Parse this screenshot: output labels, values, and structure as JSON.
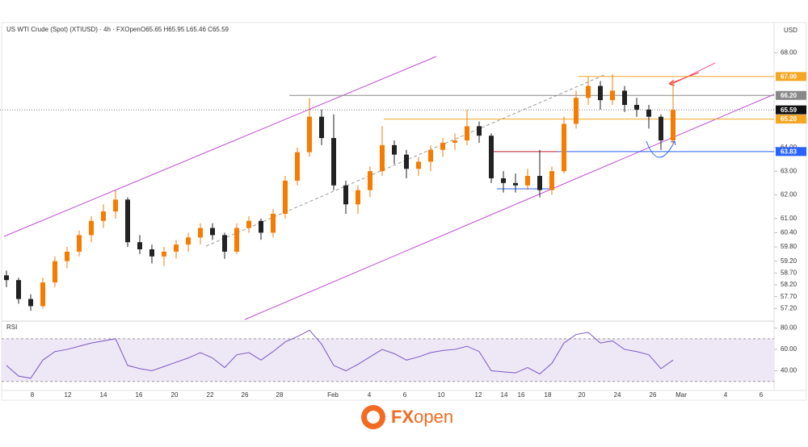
{
  "chart_data": {
    "type": "candlestick",
    "title": "US WTI Crude (Spot) (XTIUSD) · 4h · FXOpen",
    "ohlc_text": "O65.65 H65.95 L65.46 C65.59",
    "y_axis_label": "USD",
    "up_color": "#f57c00",
    "down_color": "#222222",
    "ylim": [
      56.7,
      68.8
    ],
    "yticks": [
      {
        "value": 68,
        "label": "68.00"
      },
      {
        "value": 64,
        "label": "64.00"
      },
      {
        "value": 63,
        "label": "63.00"
      },
      {
        "value": 62,
        "label": "62.00"
      },
      {
        "value": 61,
        "label": "61.00"
      },
      {
        "value": 60.4,
        "label": "60.40"
      },
      {
        "value": 59.8,
        "label": "59.80"
      },
      {
        "value": 59.2,
        "label": "59.20"
      },
      {
        "value": 58.7,
        "label": "58.70"
      },
      {
        "value": 58.2,
        "label": "58.20"
      },
      {
        "value": 57.7,
        "label": "57.70"
      },
      {
        "value": 57.2,
        "label": "57.20"
      }
    ],
    "x_labels": [
      "8",
      "12",
      "14",
      "16",
      "20",
      "22",
      "26",
      "28",
      "Feb",
      "4",
      "6",
      "10",
      "12",
      "14",
      "16",
      "18",
      "20",
      "24",
      "26",
      "Mar",
      "4",
      "6"
    ],
    "candles": [
      [
        58.6,
        58.8,
        58.1,
        58.4
      ],
      [
        58.4,
        58.5,
        57.4,
        57.6
      ],
      [
        57.6,
        57.8,
        57.1,
        57.3
      ],
      [
        57.3,
        58.5,
        57.2,
        58.3
      ],
      [
        58.3,
        59.4,
        58.1,
        59.2
      ],
      [
        59.2,
        59.8,
        58.9,
        59.6
      ],
      [
        59.6,
        60.5,
        59.4,
        60.3
      ],
      [
        60.3,
        61.1,
        60.0,
        60.9
      ],
      [
        60.9,
        61.6,
        60.6,
        61.3
      ],
      [
        61.3,
        62.2,
        61.0,
        61.8
      ],
      [
        61.8,
        61.9,
        59.8,
        60.0
      ],
      [
        60.0,
        60.3,
        59.5,
        59.7
      ],
      [
        59.7,
        59.9,
        59.1,
        59.4
      ],
      [
        59.4,
        59.8,
        59.0,
        59.6
      ],
      [
        59.6,
        60.1,
        59.3,
        59.9
      ],
      [
        59.9,
        60.4,
        59.6,
        60.2
      ],
      [
        60.2,
        60.8,
        59.9,
        60.6
      ],
      [
        60.6,
        60.8,
        60.1,
        60.3
      ],
      [
        60.3,
        60.4,
        59.3,
        59.6
      ],
      [
        59.6,
        60.8,
        59.5,
        60.6
      ],
      [
        60.6,
        61.1,
        60.4,
        60.9
      ],
      [
        60.9,
        61.0,
        60.1,
        60.4
      ],
      [
        60.4,
        61.4,
        60.2,
        61.2
      ],
      [
        61.2,
        62.8,
        61.0,
        62.6
      ],
      [
        62.6,
        64.0,
        62.4,
        63.8
      ],
      [
        63.8,
        66.1,
        63.6,
        65.3
      ],
      [
        65.3,
        65.6,
        64.1,
        64.4
      ],
      [
        64.4,
        65.4,
        62.2,
        62.4
      ],
      [
        62.4,
        62.6,
        61.2,
        61.6
      ],
      [
        61.6,
        62.4,
        61.2,
        62.2
      ],
      [
        62.2,
        63.2,
        61.9,
        63.0
      ],
      [
        63.0,
        64.9,
        62.8,
        64.1
      ],
      [
        64.1,
        64.3,
        63.3,
        63.7
      ],
      [
        63.7,
        63.9,
        62.7,
        63.1
      ],
      [
        63.1,
        63.6,
        62.8,
        63.4
      ],
      [
        63.4,
        64.1,
        63.0,
        63.9
      ],
      [
        63.9,
        64.4,
        63.6,
        64.2
      ],
      [
        64.2,
        64.6,
        63.9,
        64.3
      ],
      [
        64.3,
        65.6,
        64.1,
        64.9
      ],
      [
        64.9,
        65.1,
        64.2,
        64.5
      ],
      [
        64.5,
        64.6,
        62.5,
        62.7
      ],
      [
        62.7,
        63.0,
        62.1,
        62.5
      ],
      [
        62.5,
        62.9,
        62.1,
        62.4
      ],
      [
        62.4,
        63.1,
        62.2,
        62.8
      ],
      [
        62.8,
        63.9,
        61.9,
        62.2
      ],
      [
        62.2,
        63.2,
        62.0,
        63.0
      ],
      [
        63.0,
        65.3,
        62.9,
        65.0
      ],
      [
        65.0,
        66.4,
        64.8,
        66.1
      ],
      [
        66.1,
        67.0,
        65.8,
        66.6
      ],
      [
        66.6,
        66.8,
        65.6,
        66.0
      ],
      [
        66.0,
        67.1,
        65.8,
        66.4
      ],
      [
        66.4,
        66.6,
        65.5,
        65.8
      ],
      [
        65.8,
        66.1,
        65.3,
        65.6
      ],
      [
        65.6,
        65.8,
        64.8,
        65.3
      ],
      [
        65.3,
        65.4,
        63.9,
        64.3
      ],
      [
        64.3,
        66.8,
        64.1,
        65.59
      ]
    ],
    "levels": [
      {
        "value": 67,
        "label": "67.00",
        "color": "#f5a623"
      },
      {
        "value": 66.2,
        "label": "66.20",
        "color": "#888888"
      },
      {
        "value": 65.59,
        "label": "65.59",
        "color": "#111111"
      },
      {
        "value": 65.2,
        "label": "65.20",
        "color": "#f5a623"
      },
      {
        "value": 63.83,
        "label": "63.83",
        "color": "#2962ff"
      }
    ],
    "rsi": {
      "label": "RSI",
      "color": "#7e57c2",
      "ylim": [
        23,
        85
      ],
      "band": [
        30,
        70
      ],
      "yticks": [
        {
          "value": 80,
          "label": "80.00"
        },
        {
          "value": 60,
          "label": "60.00"
        },
        {
          "value": 40,
          "label": "40.00"
        }
      ],
      "values": [
        45,
        35,
        33,
        50,
        58,
        60,
        63,
        66,
        68,
        70,
        45,
        42,
        40,
        44,
        48,
        52,
        57,
        52,
        43,
        55,
        57,
        50,
        58,
        67,
        72,
        78,
        65,
        45,
        40,
        46,
        53,
        60,
        56,
        50,
        53,
        57,
        59,
        60,
        63,
        58,
        40,
        39,
        38,
        43,
        37,
        47,
        66,
        74,
        76,
        66,
        68,
        60,
        58,
        55,
        42,
        50
      ]
    },
    "logo": {
      "bold": "FX",
      "light": "open"
    }
  }
}
